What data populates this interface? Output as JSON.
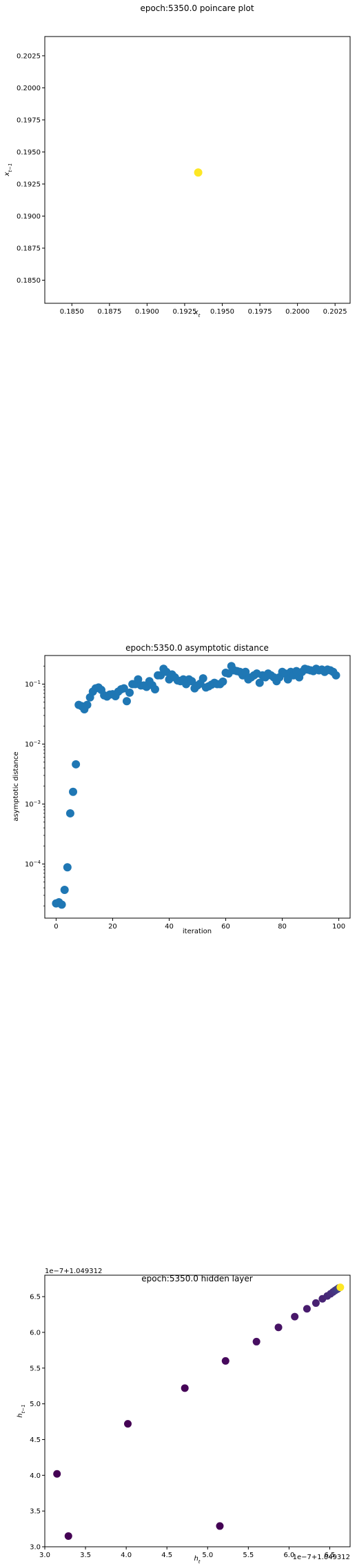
{
  "chart_data": [
    {
      "type": "scatter",
      "title": "epoch:5350.0 poincare plot",
      "xlabel": "x_t",
      "ylabel": "x_{t-1}",
      "xlim": [
        0.1832,
        0.2035
      ],
      "ylim": [
        0.1832,
        0.204
      ],
      "xticks": [
        "0.1850",
        "0.1875",
        "0.1900",
        "0.1925",
        "0.1950",
        "0.1975",
        "0.2000",
        "0.2025"
      ],
      "xtick_values": [
        0.185,
        0.1875,
        0.19,
        0.1925,
        0.195,
        0.1975,
        0.2,
        0.2025
      ],
      "yticks": [
        "0.1850",
        "0.1875",
        "0.1900",
        "0.1925",
        "0.1950",
        "0.1975",
        "0.2000",
        "0.2025"
      ],
      "ytick_values": [
        0.185,
        0.1875,
        0.19,
        0.1925,
        0.195,
        0.1975,
        0.2,
        0.2025
      ],
      "points": [
        {
          "x": 0.1934,
          "y": 0.1934,
          "color": "#fde725"
        }
      ],
      "grid": false
    },
    {
      "type": "scatter",
      "title": "epoch:5350.0 asymptotic distance",
      "xlabel": "iteration",
      "ylabel": "asymptotic distance",
      "yscale": "log",
      "xlim": [
        -4,
        104
      ],
      "ylim": [
        1.25e-05,
        0.3
      ],
      "xticks": [
        "0",
        "20",
        "40",
        "60",
        "80",
        "100"
      ],
      "xtick_values": [
        0,
        20,
        40,
        60,
        80,
        100
      ],
      "yticks": [
        "10^-4",
        "10^-3",
        "10^-2",
        "10^-1"
      ],
      "ytick_values": [
        0.0001,
        0.001,
        0.01,
        0.1
      ],
      "color": "#1f77b4",
      "x": [
        0,
        1,
        2,
        3,
        4,
        5,
        6,
        7,
        8,
        9,
        10,
        11,
        12,
        13,
        14,
        15,
        16,
        17,
        18,
        19,
        20,
        21,
        22,
        23,
        24,
        25,
        26,
        27,
        28,
        29,
        30,
        31,
        32,
        33,
        34,
        35,
        36,
        37,
        38,
        39,
        40,
        41,
        42,
        43,
        44,
        45,
        46,
        47,
        48,
        49,
        50,
        51,
        52,
        53,
        54,
        55,
        56,
        57,
        58,
        59,
        60,
        61,
        62,
        63,
        64,
        65,
        66,
        67,
        68,
        69,
        70,
        71,
        72,
        73,
        74,
        75,
        76,
        77,
        78,
        79,
        80,
        81,
        82,
        83,
        84,
        85,
        86,
        87,
        88,
        89,
        90,
        91,
        92,
        93,
        94,
        95,
        96,
        97,
        98,
        99
      ],
      "y": [
        2.2e-05,
        2.3e-05,
        2.1e-05,
        3.7e-05,
        8.8e-05,
        0.0007,
        0.0016,
        0.0046,
        0.045,
        0.043,
        0.038,
        0.045,
        0.06,
        0.075,
        0.085,
        0.088,
        0.08,
        0.065,
        0.062,
        0.067,
        0.068,
        0.063,
        0.075,
        0.082,
        0.085,
        0.052,
        0.072,
        0.1,
        0.1,
        0.12,
        0.095,
        0.095,
        0.09,
        0.112,
        0.096,
        0.082,
        0.14,
        0.14,
        0.18,
        0.16,
        0.12,
        0.145,
        0.13,
        0.115,
        0.112,
        0.12,
        0.1,
        0.12,
        0.112,
        0.085,
        0.095,
        0.102,
        0.125,
        0.088,
        0.092,
        0.098,
        0.105,
        0.1,
        0.1,
        0.11,
        0.155,
        0.15,
        0.2,
        0.17,
        0.165,
        0.16,
        0.14,
        0.16,
        0.12,
        0.13,
        0.14,
        0.15,
        0.105,
        0.14,
        0.13,
        0.15,
        0.14,
        0.13,
        0.112,
        0.13,
        0.16,
        0.15,
        0.12,
        0.16,
        0.14,
        0.165,
        0.13,
        0.16,
        0.18,
        0.175,
        0.17,
        0.165,
        0.18,
        0.17,
        0.175,
        0.16,
        0.175,
        0.17,
        0.16,
        0.14
      ],
      "grid": false
    },
    {
      "type": "scatter",
      "title": "epoch:5350.0 hidden layer",
      "xlabel": "h_t",
      "ylabel": "h_{t-1}",
      "x_offset_label": "1e−7+1.049312",
      "y_offset_label": "1e−7+1.049312",
      "xlim": [
        3.0,
        6.75
      ],
      "ylim": [
        3.0,
        6.8
      ],
      "xticks": [
        "3.0",
        "3.5",
        "4.0",
        "4.5",
        "5.0",
        "5.5",
        "6.0",
        "6.5"
      ],
      "xtick_values": [
        3.0,
        3.5,
        4.0,
        4.5,
        5.0,
        5.5,
        6.0,
        6.5
      ],
      "yticks": [
        "3.0",
        "3.5",
        "4.0",
        "4.5",
        "5.0",
        "5.5",
        "6.0",
        "6.5"
      ],
      "ytick_values": [
        3.0,
        3.5,
        4.0,
        4.5,
        5.0,
        5.5,
        6.0,
        6.5
      ],
      "points": [
        {
          "x": 3.15,
          "y": 4.02,
          "color": "#440154"
        },
        {
          "x": 3.29,
          "y": 3.15,
          "color": "#440154"
        },
        {
          "x": 4.02,
          "y": 4.72,
          "color": "#440154"
        },
        {
          "x": 4.72,
          "y": 5.22,
          "color": "#450457"
        },
        {
          "x": 5.15,
          "y": 3.29,
          "color": "#440154"
        },
        {
          "x": 5.22,
          "y": 5.6,
          "color": "#46085c"
        },
        {
          "x": 5.6,
          "y": 5.87,
          "color": "#470e61"
        },
        {
          "x": 5.87,
          "y": 6.07,
          "color": "#471365"
        },
        {
          "x": 6.07,
          "y": 6.22,
          "color": "#481769"
        },
        {
          "x": 6.22,
          "y": 6.33,
          "color": "#481b6d"
        },
        {
          "x": 6.33,
          "y": 6.41,
          "color": "#482071"
        },
        {
          "x": 6.41,
          "y": 6.47,
          "color": "#482475"
        },
        {
          "x": 6.47,
          "y": 6.51,
          "color": "#472878"
        },
        {
          "x": 6.51,
          "y": 6.54,
          "color": "#472c7a"
        },
        {
          "x": 6.54,
          "y": 6.565,
          "color": "#46307e"
        },
        {
          "x": 6.565,
          "y": 6.585,
          "color": "#453581"
        },
        {
          "x": 6.585,
          "y": 6.6,
          "color": "#443983"
        },
        {
          "x": 6.6,
          "y": 6.61,
          "color": "#433e85"
        },
        {
          "x": 6.61,
          "y": 6.62,
          "color": "#424086"
        },
        {
          "x": 6.63,
          "y": 6.63,
          "color": "#fde725"
        }
      ],
      "grid": false
    }
  ]
}
